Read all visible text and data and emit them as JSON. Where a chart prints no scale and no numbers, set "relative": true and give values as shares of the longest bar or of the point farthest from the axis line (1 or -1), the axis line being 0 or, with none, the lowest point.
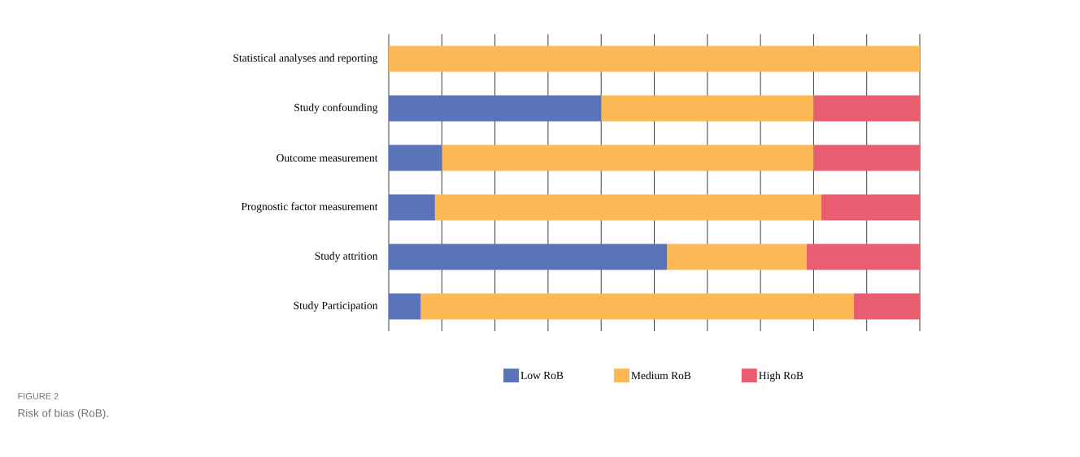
{
  "chart_data": {
    "type": "bar",
    "orientation": "horizontal",
    "stacked": true,
    "relative": true,
    "grid": "x",
    "legend": "bottom",
    "categories": [
      "Statistical analyses and reporting",
      "Study confounding",
      "Outcome measurement",
      "Prognostic factor measurement",
      "Study attrition",
      "Study Participation"
    ],
    "series": [
      {
        "name": "Low RoB",
        "color": "#5b73b8",
        "values": [
          0,
          0.4,
          0.1,
          0.087,
          0.524,
          0.06
        ]
      },
      {
        "name": "Medium RoB",
        "color": "#fbb854",
        "values": [
          1,
          0.4,
          0.7,
          0.727,
          0.263,
          0.816
        ]
      },
      {
        "name": "High RoB",
        "color": "#e95d70",
        "values": [
          0,
          0.2,
          0.2,
          0.186,
          0.213,
          0.124
        ]
      }
    ],
    "annotations": [
      "FIGURE 2",
      "Risk of bias (RoB)."
    ]
  }
}
